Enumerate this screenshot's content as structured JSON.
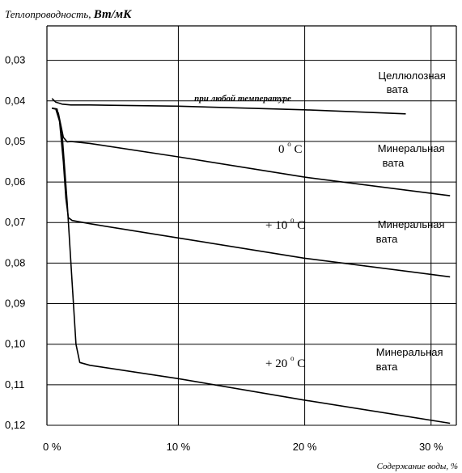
{
  "chart_data": {
    "type": "line",
    "ylabel": "Теплопроводность,",
    "ylabel_unit": "Вт/мК",
    "xlabel": "Содержание воды, %",
    "x_ticks": [
      "0 %",
      "10 %",
      "20 %",
      "30 %"
    ],
    "x_tick_values": [
      0,
      10,
      20,
      30
    ],
    "y_ticks": [
      "0,03",
      "0,04",
      "0,05",
      "0,06",
      "0,07",
      "0,08",
      "0,09",
      "0,10",
      "0,11",
      "0,12"
    ],
    "y_tick_values": [
      0.03,
      0.04,
      0.05,
      0.06,
      0.07,
      0.08,
      0.09,
      0.1,
      0.11,
      0.12
    ],
    "xlim": [
      -0.4,
      32
    ],
    "ylim": [
      0.12,
      0.0215
    ],
    "y_axis_inverted": true,
    "grid": true,
    "series": [
      {
        "name": "Целлюлозная вата",
        "condition": "при любой температуре",
        "x": [
          0,
          0.3,
          0.8,
          1.5,
          3,
          10,
          20,
          28
        ],
        "y": [
          0.0394,
          0.0403,
          0.0408,
          0.041,
          0.041,
          0.0413,
          0.0422,
          0.0432
        ]
      },
      {
        "name": "Минеральная вата",
        "condition": "0 °C",
        "x": [
          0,
          0.3,
          0.5,
          0.7,
          0.9,
          1.2,
          1.5,
          3,
          10,
          20,
          31.5
        ],
        "y": [
          0.0418,
          0.042,
          0.043,
          0.046,
          0.049,
          0.0501,
          0.05,
          0.0505,
          0.0538,
          0.0588,
          0.0634
        ]
      },
      {
        "name": "Минеральная вата",
        "condition": "+ 10 °C",
        "x": [
          0,
          0.3,
          0.6,
          0.9,
          1.1,
          1.3,
          1.6,
          3,
          10,
          20,
          31.5
        ],
        "y": [
          0.0418,
          0.042,
          0.045,
          0.055,
          0.064,
          0.0688,
          0.0695,
          0.0703,
          0.0738,
          0.0788,
          0.0834
        ]
      },
      {
        "name": "Минеральная вата",
        "condition": "+ 20 °C",
        "x": [
          0,
          0.4,
          0.8,
          1.2,
          1.6,
          1.9,
          2.2,
          3,
          10,
          20,
          31.5
        ],
        "y": [
          0.0418,
          0.042,
          0.048,
          0.065,
          0.085,
          0.1,
          0.1045,
          0.1052,
          0.1085,
          0.1138,
          0.1195
        ]
      }
    ],
    "annotations": {
      "cellulose_condition": "при любой температуре",
      "temp_0": "0",
      "temp_10": "+ 10",
      "temp_20": "+ 20",
      "degree_unit": "C",
      "degree_symbol": "o",
      "series_label_line1_cellulose": "Целлюлозная",
      "series_label_line1_mineral": "Минеральная",
      "series_label_line2": "вата"
    }
  }
}
